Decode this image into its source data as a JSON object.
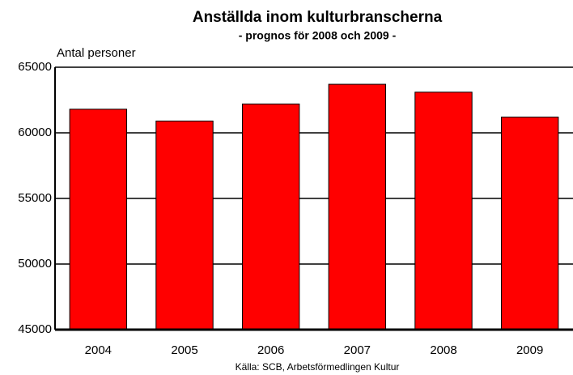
{
  "chart_data": {
    "type": "bar",
    "title": "Anställda inom kulturbranscherna",
    "subtitle": "- prognos för 2008 och 2009 -",
    "y_label": "Antal personer",
    "source": "Källa: SCB, Arbetsförmedlingen Kultur",
    "categories": [
      "2004",
      "2005",
      "2006",
      "2007",
      "2008",
      "2009"
    ],
    "values": [
      61800,
      60900,
      62200,
      63700,
      63100,
      61200
    ],
    "color": "#ff0000",
    "ylim": [
      45000,
      65000
    ],
    "yticks": [
      45000,
      50000,
      55000,
      60000,
      65000
    ],
    "grid": true
  }
}
